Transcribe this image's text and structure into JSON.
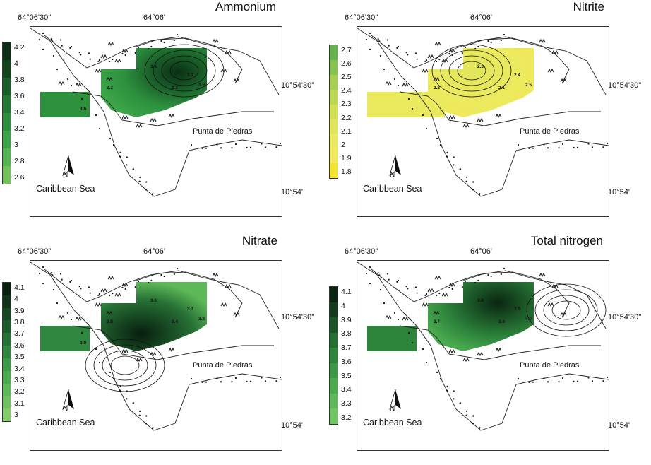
{
  "common": {
    "lon_left_label": "64°06'30''",
    "lon_center_label": "64°06'",
    "lat_mid_label": "10°54'30''",
    "lat_low_label": "10°54'",
    "place_label": "Punta de Piedras",
    "sea_label": "Caribbean Sea",
    "north_label": "N"
  },
  "panels": [
    {
      "title": "Ammonium",
      "legend_values": [
        "4.2",
        "4",
        "3.8",
        "3.6",
        "3.4",
        "3.2",
        "3",
        "2.8",
        "2.6"
      ],
      "legend_colors": [
        "#0b2e14",
        "#12451e",
        "#1a5e2a",
        "#237834",
        "#2c903d",
        "#3aa447",
        "#55b451",
        "#74c25a"
      ],
      "contour_labels": [
        "3.4",
        "3.3",
        "3.2",
        "3.1",
        "3.5",
        "3.6"
      ]
    },
    {
      "title": "Nitrite",
      "legend_values": [
        "2.7",
        "2.6",
        "2.5",
        "2.4",
        "2.3",
        "2.2",
        "2.1",
        "2",
        "1.9",
        "1.8"
      ],
      "legend_colors": [
        "#63b24c",
        "#86c24e",
        "#a4cf50",
        "#bcd952",
        "#d0e155",
        "#e0e65a",
        "#ebea5e",
        "#f2e85a",
        "#f3e32c"
      ],
      "contour_labels": [
        "2.3",
        "2.2",
        "2.1",
        "2.4",
        "2.5"
      ]
    },
    {
      "title": "Nitrate",
      "legend_values": [
        "4.1",
        "4",
        "3.9",
        "3.8",
        "3.7",
        "3.6",
        "3.5",
        "3.4",
        "3.3",
        "3.2",
        "3.1",
        "3"
      ],
      "legend_colors": [
        "#081e0e",
        "#0f3218",
        "#174722",
        "#1f5c2c",
        "#277236",
        "#2f8740",
        "#3a9a48",
        "#4aab4f",
        "#5db858",
        "#70c260",
        "#84cc6a"
      ],
      "contour_labels": [
        "3.6",
        "3.5",
        "3.4",
        "3.7",
        "3.8",
        "3.9"
      ]
    },
    {
      "title": "Total nitrogen",
      "legend_values": [
        "4.1",
        "4",
        "3.9",
        "3.8",
        "3.7",
        "3.6",
        "3.5",
        "3.4",
        "3.3",
        "3.2"
      ],
      "legend_colors": [
        "#0a2511",
        "#123c1c",
        "#1b5527",
        "#246e32",
        "#2d853c",
        "#3a9946",
        "#4aaa4f",
        "#5db858",
        "#71c462"
      ],
      "contour_labels": [
        "3.8",
        "3.7",
        "3.6",
        "3.9",
        "4.0"
      ]
    }
  ]
}
